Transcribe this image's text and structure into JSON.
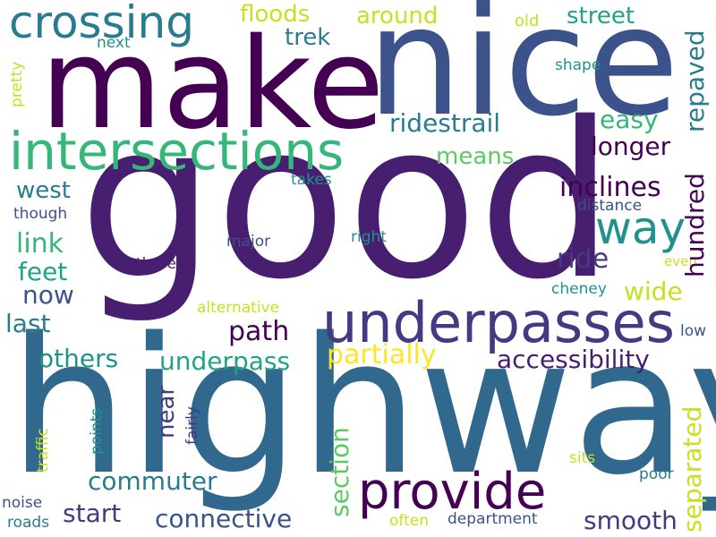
{
  "words": {
    "good": "good",
    "highway": "highway",
    "nice": "nice",
    "make": "make",
    "intersections": "intersections",
    "underpasses": "underpasses",
    "provide": "provide",
    "crossing": "crossing",
    "way": "way",
    "floods": "floods",
    "around": "around",
    "street": "street",
    "trek": "trek",
    "old": "old",
    "next": "next",
    "pretty": "pretty",
    "shape": "shape",
    "repaved": "repaved",
    "ridestrail": "ridestrail",
    "easy": "easy",
    "longer": "longer",
    "means": "means",
    "west": "west",
    "takes": "takes",
    "inclines": "inclines",
    "though": "though",
    "distance": "distance",
    "hundred": "hundred",
    "link": "link",
    "major": "major",
    "right": "right",
    "feet": "feet",
    "theres": "theres",
    "ride": "ride",
    "even": "even",
    "now": "now",
    "cheney": "cheney",
    "wide": "wide",
    "alternative": "alternative",
    "last": "last",
    "path": "path",
    "low": "low",
    "others": "others",
    "underpass": "underpass",
    "partially": "partially",
    "accessibility": "accessibility",
    "near": "near",
    "section": "section",
    "separated": "separated",
    "fairly": "fairly",
    "points": "points",
    "traffic": "traffic",
    "sits": "sits",
    "commuter": "commuter",
    "poor": "poor",
    "start": "start",
    "connective": "connective",
    "smooth": "smooth",
    "noise": "noise",
    "roads": "roads",
    "often": "often",
    "department": "department"
  },
  "palette": {
    "dark_purple": "#440154",
    "purple": "#481f70",
    "indigo": "#443983",
    "blue": "#3b528b",
    "steel": "#31688e",
    "teal_blue": "#287c8e",
    "teal": "#21918c",
    "sea_green": "#20a486",
    "green": "#35b779",
    "light_green": "#5ec962",
    "lime": "#90d743",
    "yellow_green": "#c8e020",
    "yellow": "#fde725"
  }
}
